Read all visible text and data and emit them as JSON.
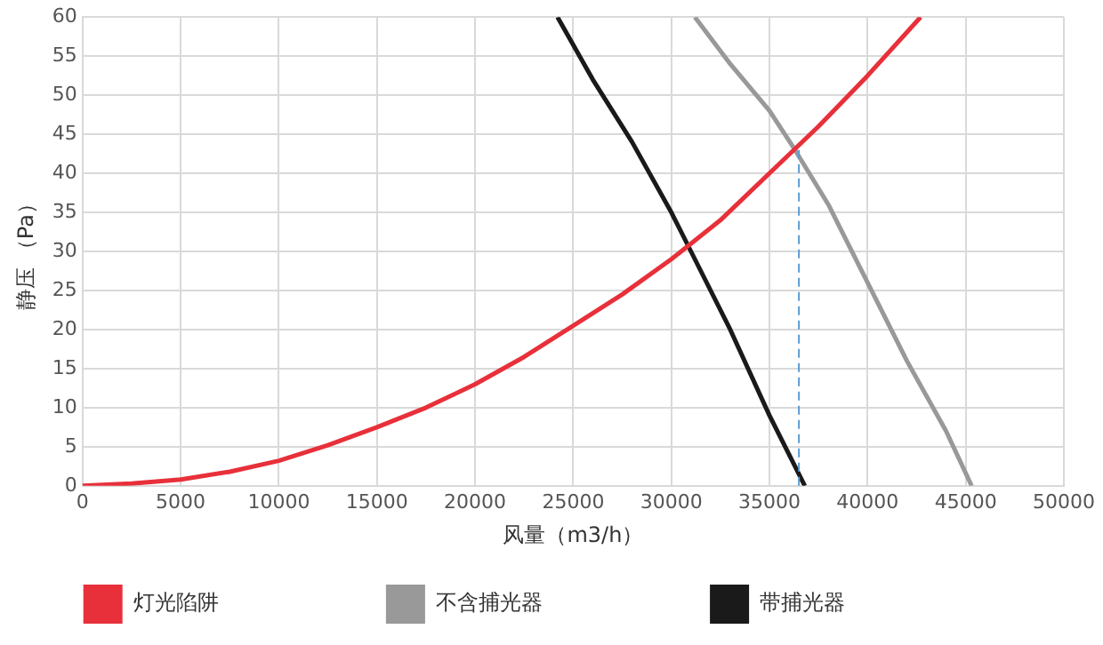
{
  "chart_data": {
    "type": "line",
    "xlabel": "风量（m3/h）",
    "ylabel": "静压 （Pa）",
    "xlim": [
      0,
      50000
    ],
    "xticks": [
      0,
      5000,
      10000,
      15000,
      20000,
      25000,
      30000,
      35000,
      40000,
      45000,
      50000
    ],
    "ylim": [
      0,
      60
    ],
    "yticks": [
      0,
      5,
      10,
      15,
      20,
      25,
      30,
      35,
      40,
      45,
      50,
      55,
      60
    ],
    "grid": true,
    "legend": "bottom",
    "marker": "none",
    "line_style": "solid",
    "series": [
      {
        "name": "灯光陷阱",
        "color": "#e8303a",
        "x": [
          0,
          2500,
          5000,
          7500,
          10000,
          12500,
          15000,
          17500,
          20000,
          22500,
          25000,
          27500,
          30000,
          32500,
          35000,
          37500,
          40000,
          42700
        ],
        "values": [
          0,
          0.3,
          0.8,
          1.8,
          3.2,
          5.2,
          7.5,
          10,
          13,
          16.5,
          20.5,
          24.5,
          29,
          34,
          40,
          46,
          52.5,
          60
        ]
      },
      {
        "name": "不含捕光器",
        "color": "#999999",
        "x": [
          31200,
          33000,
          35000,
          36300,
          38000,
          40000,
          42000,
          44000,
          45300
        ],
        "values": [
          60,
          54,
          48,
          43,
          36,
          26,
          16,
          7,
          0
        ]
      },
      {
        "name": "带捕光器",
        "color": "#1a1a1a",
        "x": [
          24200,
          26000,
          28000,
          30000,
          31000,
          33000,
          35000,
          36800
        ],
        "values": [
          60,
          52,
          44,
          35,
          30,
          20,
          9,
          0
        ]
      }
    ],
    "ref_lines": [
      {
        "axis": "x",
        "value": 36500,
        "color": "#5b9bd5",
        "line_style": "dashed"
      }
    ]
  }
}
